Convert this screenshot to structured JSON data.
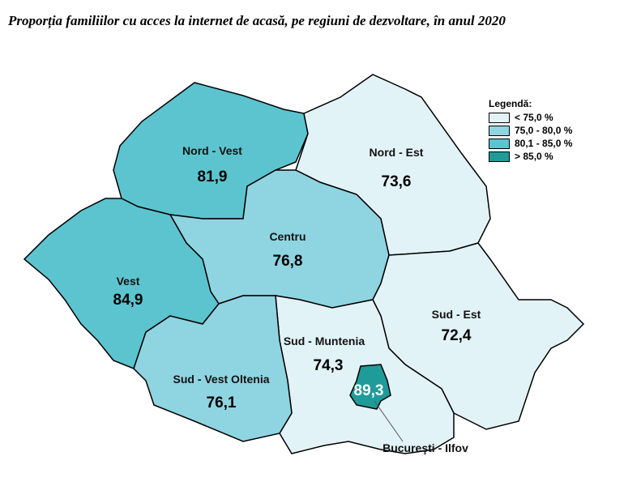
{
  "title": "Proporția familiilor cu acces la internet de acasă, pe regiuni de dezvoltare, în anul 2020",
  "legend": {
    "title": "Legendă:",
    "items": [
      {
        "label": "< 75,0 %",
        "color": "#e2f3f8"
      },
      {
        "label": "75,0 - 80,0 %",
        "color": "#8fd4e1"
      },
      {
        "label": "80,1 - 85,0 %",
        "color": "#5cc4cf"
      },
      {
        "label": "> 85,0 %",
        "color": "#1f9b9a"
      }
    ]
  },
  "regions": [
    {
      "name": "Nord - Vest",
      "value": "81,9",
      "color": "#5cc4cf"
    },
    {
      "name": "Nord - Est",
      "value": "73,6",
      "color": "#e2f3f8"
    },
    {
      "name": "Centru",
      "value": "76,8",
      "color": "#8fd4e1"
    },
    {
      "name": "Vest",
      "value": "84,9",
      "color": "#5cc4cf"
    },
    {
      "name": "Sud - Est",
      "value": "72,4",
      "color": "#e2f3f8"
    },
    {
      "name": "Sud - Muntenia",
      "value": "74,3",
      "color": "#e2f3f8"
    },
    {
      "name": "Sud - Vest Oltenia",
      "value": "76,1",
      "color": "#8fd4e1"
    },
    {
      "name": "Bucureşti - Ilfov",
      "value": "89,3",
      "color": "#1f9b9a"
    }
  ]
}
